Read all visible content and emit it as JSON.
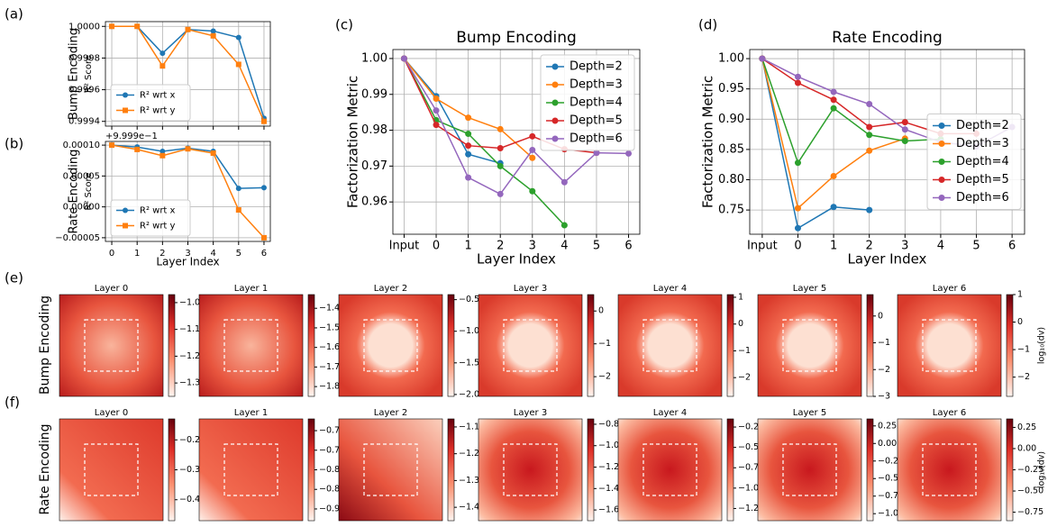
{
  "rows": [
    {
      "panel": "(e)",
      "label": "Bump Encoding"
    },
    {
      "panel": "(f)",
      "label": "Rate Encoding"
    }
  ],
  "chart_data": [
    {
      "type": "line",
      "panel": "(a)",
      "row_label": "Bump Encoding",
      "ylabel": "R² Score",
      "grid": true,
      "legend": "lower left",
      "show_xticklabels": false,
      "x": [
        0,
        1,
        2,
        3,
        4,
        5,
        6
      ],
      "xlim": [
        -0.25,
        6.25
      ],
      "xticks": [
        0,
        1,
        2,
        3,
        4,
        5,
        6
      ],
      "ylim": [
        0.99937,
        1.00003
      ],
      "yticks": [
        0.9994,
        0.9996,
        0.9998,
        {
          "value": 1,
          "label": "1.0000"
        }
      ],
      "series": [
        {
          "name": "R² wrt x",
          "color": "#1f77b4",
          "marker": "o",
          "values": [
            1.0,
            1.0,
            0.99983,
            0.99998,
            0.99997,
            0.99993,
            0.99942
          ]
        },
        {
          "name": "R² wrt y",
          "color": "#ff7f0e",
          "marker": "s",
          "values": [
            1.0,
            1.0,
            0.99975,
            0.99998,
            0.99994,
            0.99976,
            0.9994
          ]
        }
      ]
    },
    {
      "type": "line",
      "panel": "(b)",
      "row_label": "Rate Encoding",
      "ylabel": "R² Score",
      "offset_text": "+9.999e−1",
      "xlabel": "Layer Index",
      "grid": true,
      "legend": "lower left",
      "show_xticklabels": true,
      "x": [
        0,
        1,
        2,
        3,
        4,
        5,
        6
      ],
      "xlim": [
        -0.25,
        6.25
      ],
      "xticks": [
        0,
        1,
        2,
        3,
        4,
        5,
        6
      ],
      "ylim": [
        -5.6e-05,
        0.000106
      ],
      "yticks": [
        {
          "value": -5e-05,
          "label": "−0.00005"
        },
        {
          "value": 0,
          "label": "0.00000"
        },
        {
          "value": 5e-05,
          "label": "0.00005"
        },
        {
          "value": 0.0001,
          "label": "0.00010"
        }
      ],
      "series": [
        {
          "name": "R² wrt x",
          "color": "#1f77b4",
          "marker": "o",
          "values": [
            0.0001,
            9.7e-05,
            9e-05,
            9.5e-05,
            9e-05,
            3e-05,
            3.1e-05
          ]
        },
        {
          "name": "R² wrt y",
          "color": "#ff7f0e",
          "marker": "s",
          "values": [
            0.0001,
            9.3e-05,
            8.3e-05,
            9.4e-05,
            8.7e-05,
            -5e-06,
            -5e-05
          ]
        }
      ]
    },
    {
      "type": "line",
      "panel": "(c)",
      "title": "Bump Encoding",
      "ylabel": "Factorization Metric",
      "xlabel": "Layer Index",
      "grid": true,
      "legend": "upper right",
      "show_xticklabels": true,
      "categories": [
        "Input",
        "0",
        "1",
        "2",
        "3",
        "4",
        "5",
        "6"
      ],
      "ylim": [
        0.951,
        1.0025
      ],
      "yticks": [
        0.96,
        0.97,
        0.98,
        0.99,
        {
          "value": 1,
          "label": "1.00"
        }
      ],
      "series": [
        {
          "name": "Depth=2",
          "color": "#1f77b4",
          "marker": "o",
          "values": [
            1.0,
            0.9895,
            0.9733,
            0.9708,
            null,
            null,
            null,
            null
          ]
        },
        {
          "name": "Depth=3",
          "color": "#ff7f0e",
          "marker": "o",
          "values": [
            1.0,
            0.9888,
            0.9835,
            0.9803,
            0.9723,
            null,
            null,
            null
          ]
        },
        {
          "name": "Depth=4",
          "color": "#2ca02c",
          "marker": "o",
          "values": [
            1.0,
            0.9828,
            0.979,
            0.97,
            0.963,
            0.9535,
            null,
            null
          ]
        },
        {
          "name": "Depth=5",
          "color": "#d62728",
          "marker": "o",
          "values": [
            1.0,
            0.9815,
            0.9757,
            0.975,
            0.9783,
            0.9747,
            0.9737,
            null
          ]
        },
        {
          "name": "Depth=6",
          "color": "#9467bd",
          "marker": "o",
          "values": [
            1.0,
            0.9855,
            0.9668,
            0.9622,
            0.9745,
            0.9655,
            0.9737,
            0.9735
          ]
        }
      ]
    },
    {
      "type": "line",
      "panel": "(d)",
      "title": "Rate Encoding",
      "ylabel": "Factorization Metric",
      "xlabel": "Layer Index",
      "grid": true,
      "legend": "center right",
      "show_xticklabels": true,
      "categories": [
        "Input",
        "0",
        "1",
        "2",
        "3",
        "4",
        "5",
        "6"
      ],
      "ylim": [
        0.71,
        1.015
      ],
      "yticks": [
        0.75,
        {
          "value": 0.8,
          "label": "0.80"
        },
        0.85,
        {
          "value": 0.9,
          "label": "0.90"
        },
        0.95,
        {
          "value": 1,
          "label": "1.00"
        }
      ],
      "series": [
        {
          "name": "Depth=2",
          "color": "#1f77b4",
          "marker": "o",
          "values": [
            1.0,
            0.72,
            0.755,
            0.75,
            null,
            null,
            null,
            null
          ]
        },
        {
          "name": "Depth=3",
          "color": "#ff7f0e",
          "marker": "o",
          "values": [
            1.0,
            0.753,
            0.806,
            0.848,
            0.868,
            null,
            null,
            null
          ]
        },
        {
          "name": "Depth=4",
          "color": "#2ca02c",
          "marker": "o",
          "values": [
            1.0,
            0.828,
            0.918,
            0.874,
            0.864,
            0.867,
            null,
            null
          ]
        },
        {
          "name": "Depth=5",
          "color": "#d62728",
          "marker": "o",
          "values": [
            1.0,
            0.96,
            0.932,
            0.887,
            0.895,
            0.876,
            0.876,
            null
          ]
        },
        {
          "name": "Depth=6",
          "color": "#9467bd",
          "marker": "o",
          "values": [
            1.0,
            0.97,
            0.945,
            0.925,
            0.883,
            0.862,
            0.855,
            0.887
          ]
        }
      ]
    },
    {
      "type": "heatmap",
      "title": "Layer 0",
      "clim": [
        -1.35,
        -0.97
      ],
      "cticks": [
        {
          "value": -1.0,
          "label": "−1.0"
        },
        {
          "value": -1.1,
          "label": "−1.1"
        },
        {
          "value": -1.2,
          "label": "−1.2"
        },
        {
          "value": -1.3,
          "label": "−1.3"
        }
      ]
    },
    {
      "type": "heatmap",
      "title": "Layer 1",
      "clim": [
        -1.85,
        -1.33
      ],
      "cticks": [
        {
          "value": -1.4,
          "label": "−1.4"
        },
        {
          "value": -1.5,
          "label": "−1.5"
        },
        {
          "value": -1.6,
          "label": "−1.6"
        },
        {
          "value": -1.7,
          "label": "−1.7"
        },
        {
          "value": -1.8,
          "label": "−1.8"
        }
      ]
    },
    {
      "type": "heatmap",
      "title": "Layer 2",
      "clim": [
        -2.03,
        -0.42
      ],
      "cticks": [
        {
          "value": -0.5,
          "label": "−0.5"
        },
        {
          "value": -1.0,
          "label": "−1.0"
        },
        {
          "value": -1.5,
          "label": "−1.5"
        },
        {
          "value": -2.0,
          "label": "−2.0"
        }
      ]
    },
    {
      "type": "heatmap",
      "title": "Layer 3",
      "clim": [
        -2.6,
        0.5
      ],
      "cticks": [
        0,
        {
          "value": -1,
          "label": "−1"
        },
        {
          "value": -2,
          "label": "−2"
        }
      ]
    },
    {
      "type": "heatmap",
      "title": "Layer 4",
      "clim": [
        -2.7,
        1.1
      ],
      "cticks": [
        1,
        0,
        {
          "value": -1,
          "label": "−1"
        },
        {
          "value": -2,
          "label": "−2"
        }
      ]
    },
    {
      "type": "heatmap",
      "title": "Layer 5",
      "clim": [
        -3.0,
        0.8
      ],
      "cticks": [
        0,
        {
          "value": -1,
          "label": "−1"
        },
        {
          "value": -2,
          "label": "−2"
        },
        {
          "value": -3,
          "label": "−3"
        }
      ]
    },
    {
      "type": "heatmap",
      "title": "Layer 6",
      "clim": [
        -2.7,
        1.0
      ],
      "colorbar_label": "log₁₀(dv)",
      "cticks": [
        1,
        0,
        {
          "value": -1,
          "label": "−1"
        },
        {
          "value": -2,
          "label": "−2"
        }
      ]
    },
    {
      "type": "heatmap",
      "title": "Layer 0",
      "clim": [
        -0.47,
        -0.13
      ],
      "cticks": [
        {
          "value": -0.2,
          "label": "−0.2"
        },
        {
          "value": -0.3,
          "label": "−0.3"
        },
        {
          "value": -0.4,
          "label": "−0.4"
        }
      ]
    },
    {
      "type": "heatmap",
      "title": "Layer 1",
      "clim": [
        -0.93,
        -0.67
      ],
      "cticks": [
        {
          "value": -0.7,
          "label": "−0.70"
        },
        {
          "value": -0.75,
          "label": "−0.75"
        },
        {
          "value": -0.8,
          "label": "−0.80"
        },
        {
          "value": -0.85,
          "label": "−0.85"
        },
        {
          "value": -0.9,
          "label": "−0.90"
        }
      ]
    },
    {
      "type": "heatmap",
      "title": "Layer 2",
      "clim": [
        -1.45,
        -1.07
      ],
      "cticks": [
        {
          "value": -1.1,
          "label": "−1.1"
        },
        {
          "value": -1.2,
          "label": "−1.2"
        },
        {
          "value": -1.3,
          "label": "−1.3"
        },
        {
          "value": -1.4,
          "label": "−1.4"
        }
      ]
    },
    {
      "type": "heatmap",
      "title": "Layer 3",
      "clim": [
        -1.7,
        -0.75
      ],
      "cticks": [
        {
          "value": -0.8,
          "label": "−0.8"
        },
        {
          "value": -1.0,
          "label": "−1.0"
        },
        {
          "value": -1.2,
          "label": "−1.2"
        },
        {
          "value": -1.4,
          "label": "−1.4"
        },
        {
          "value": -1.6,
          "label": "−1.6"
        }
      ]
    },
    {
      "type": "heatmap",
      "title": "Layer 4",
      "clim": [
        -1.4,
        -0.15
      ],
      "cticks": [
        {
          "value": -0.25,
          "label": "−0.25"
        },
        {
          "value": -0.5,
          "label": "−0.50"
        },
        {
          "value": -0.75,
          "label": "−0.75"
        },
        {
          "value": -1.0,
          "label": "−1.00"
        },
        {
          "value": -1.25,
          "label": "−1.25"
        }
      ]
    },
    {
      "type": "heatmap",
      "title": "Layer 5",
      "clim": [
        -1.1,
        0.35
      ],
      "cticks": [
        {
          "value": 0.25,
          "label": "0.25"
        },
        {
          "value": 0,
          "label": "0.00"
        },
        {
          "value": -0.25,
          "label": "−0.25"
        },
        {
          "value": -0.5,
          "label": "−0.50"
        },
        {
          "value": -0.75,
          "label": "−0.75"
        },
        {
          "value": -1.0,
          "label": "−1.00"
        }
      ]
    },
    {
      "type": "heatmap",
      "title": "Layer 6",
      "clim": [
        -0.85,
        0.35
      ],
      "colorbar_label": "log₁₀(dv)",
      "cticks": [
        {
          "value": 0.25,
          "label": "0.25"
        },
        {
          "value": 0,
          "label": "0.00"
        },
        {
          "value": -0.25,
          "label": "−0.25"
        },
        {
          "value": -0.5,
          "label": "−0.50"
        },
        {
          "value": -0.75,
          "label": "−0.75"
        }
      ]
    }
  ]
}
